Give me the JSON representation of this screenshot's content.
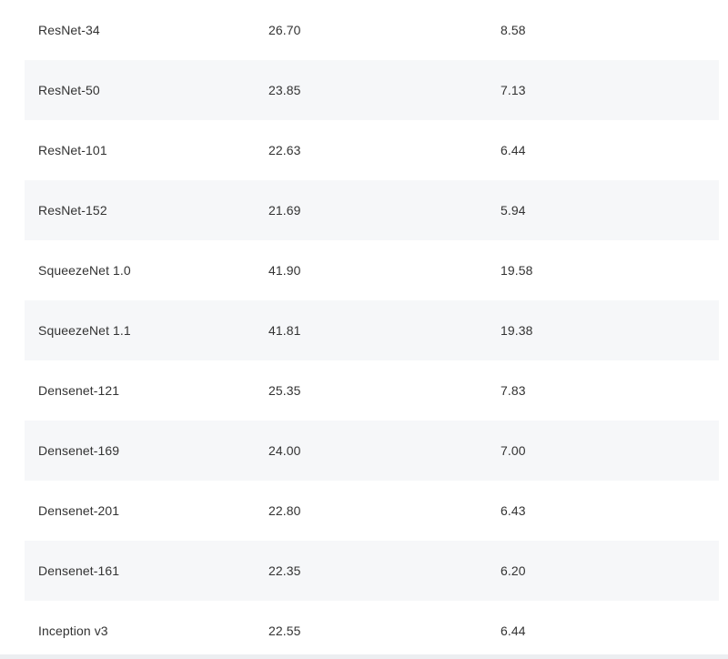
{
  "table": {
    "rows": [
      {
        "model": "ResNet-34",
        "top1_error": "26.70",
        "top5_error": "8.58"
      },
      {
        "model": "ResNet-50",
        "top1_error": "23.85",
        "top5_error": "7.13"
      },
      {
        "model": "ResNet-101",
        "top1_error": "22.63",
        "top5_error": "6.44"
      },
      {
        "model": "ResNet-152",
        "top1_error": "21.69",
        "top5_error": "5.94"
      },
      {
        "model": "SqueezeNet 1.0",
        "top1_error": "41.90",
        "top5_error": "19.58"
      },
      {
        "model": "SqueezeNet 1.1",
        "top1_error": "41.81",
        "top5_error": "19.38"
      },
      {
        "model": "Densenet-121",
        "top1_error": "25.35",
        "top5_error": "7.83"
      },
      {
        "model": "Densenet-169",
        "top1_error": "24.00",
        "top5_error": "7.00"
      },
      {
        "model": "Densenet-201",
        "top1_error": "22.80",
        "top5_error": "6.43"
      },
      {
        "model": "Densenet-161",
        "top1_error": "22.35",
        "top5_error": "6.20"
      },
      {
        "model": "Inception v3",
        "top1_error": "22.55",
        "top5_error": "6.44"
      }
    ]
  },
  "colors": {
    "row_shade": "#f6f7f9",
    "text": "#333333"
  }
}
